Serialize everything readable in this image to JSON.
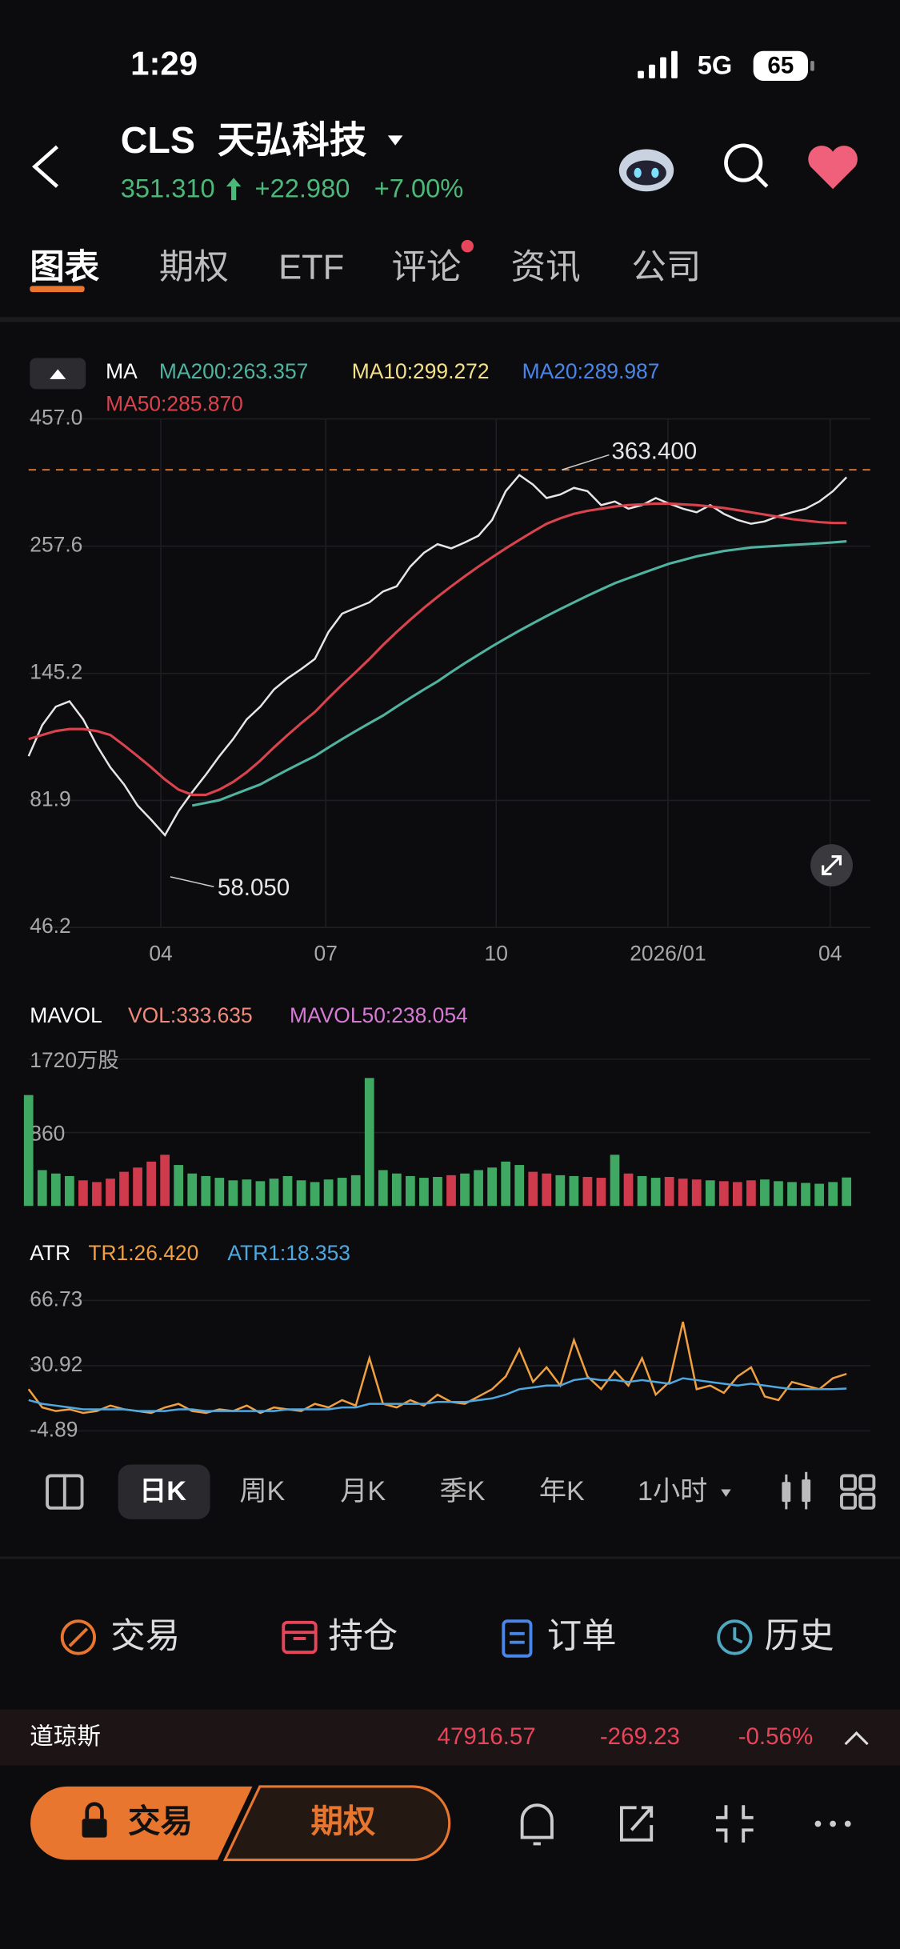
{
  "status_bar": {
    "time": "1:29",
    "network": "5G",
    "battery": "65"
  },
  "header": {
    "ticker": "CLS",
    "name": "天弘科技",
    "price": "351.310",
    "change": "+22.980",
    "change_pct": "+7.00%"
  },
  "tabs": [
    "图表",
    "期权",
    "ETF",
    "评论",
    "资讯",
    "公司"
  ],
  "price_chart": {
    "type": "line",
    "log_scale": true,
    "grid": true,
    "legend": {
      "title": "MA",
      "items": [
        "MA200:263.357",
        "MA10:299.272",
        "MA20:289.987",
        "MA50:285.870"
      ]
    },
    "x": [
      0,
      1,
      2,
      3,
      4,
      5,
      6,
      7,
      8,
      9,
      10,
      11,
      12,
      13,
      14,
      15,
      16,
      17,
      18,
      19,
      20,
      21,
      22,
      23,
      24,
      25,
      26,
      27,
      28,
      29,
      30,
      31,
      32,
      33,
      34,
      35,
      36,
      37,
      38,
      39,
      40,
      41,
      42,
      43,
      44,
      45,
      46,
      47,
      48,
      49,
      50,
      51,
      52,
      53,
      54,
      55,
      56,
      57,
      58,
      59,
      60
    ],
    "xlim": [
      0,
      60
    ],
    "xticks": [
      {
        "value": 9.7,
        "label": "04"
      },
      {
        "value": 21.8,
        "label": "07"
      },
      {
        "value": 34.3,
        "label": "10"
      },
      {
        "value": 46.9,
        "label": "2026/01"
      },
      {
        "value": 58.8,
        "label": "04"
      }
    ],
    "ylim": [
      46.2,
      457.0
    ],
    "yticks": [
      {
        "value": 457.0,
        "label": "457.0"
      },
      257.6,
      145.2,
      81.9,
      46.2
    ],
    "series": [
      {
        "name": "Close",
        "color": "#e6e6e6",
        "values": [
          100,
          115,
          125,
          128,
          118,
          105,
          95,
          88,
          80,
          75,
          70,
          78,
          85,
          92,
          100,
          108,
          118,
          125,
          135,
          142,
          148,
          155,
          175,
          190,
          195,
          200,
          210,
          215,
          235,
          250,
          260,
          255,
          262,
          270,
          290,
          330,
          355,
          340,
          320,
          325,
          335,
          330,
          310,
          315,
          305,
          310,
          320,
          312,
          305,
          300,
          310,
          298,
          290,
          285,
          288,
          295,
          300,
          305,
          315,
          330,
          351.31
        ]
      },
      {
        "name": "MA50",
        "color": "#d9434e",
        "values": [
          108,
          110,
          112,
          113,
          113,
          112,
          110,
          105,
          100,
          95,
          90,
          86,
          84,
          84,
          86,
          89,
          93,
          98,
          104,
          110,
          116,
          122,
          130,
          138,
          146,
          155,
          165,
          175,
          185,
          195,
          205,
          215,
          225,
          235,
          245,
          255,
          265,
          275,
          285,
          292,
          298,
          302,
          305,
          308,
          310,
          311,
          312,
          312,
          311,
          310,
          308,
          306,
          303,
          300,
          297,
          294,
          291,
          289,
          287,
          286,
          285.87
        ]
      },
      {
        "name": "MA200",
        "color": "#4fb3a0",
        "values": [
          null,
          null,
          null,
          null,
          null,
          null,
          null,
          null,
          null,
          null,
          null,
          null,
          80,
          81,
          82,
          84,
          86,
          88,
          91,
          94,
          97,
          100,
          104,
          108,
          112,
          116,
          120,
          125,
          130,
          135,
          140,
          146,
          152,
          158,
          164,
          170,
          176,
          182,
          188,
          194,
          200,
          206,
          212,
          218,
          223,
          228,
          233,
          238,
          242,
          246,
          249,
          252,
          254,
          256,
          257,
          258,
          259,
          260,
          261,
          262,
          263.357
        ]
      }
    ],
    "annotations": [
      {
        "value": 363.4,
        "label": "363.400"
      },
      {
        "value": 58.05,
        "label": "58.050"
      }
    ]
  },
  "volume_chart": {
    "type": "bar",
    "legend": {
      "title": "MAVOL",
      "items": [
        "VOL:333.635",
        "MAVOL50:238.054"
      ]
    },
    "ylim": [
      0,
      1720
    ],
    "yticks": [
      860,
      {
        "value": 1720,
        "label": "1720万股"
      }
    ],
    "values": [
      1300,
      420,
      380,
      350,
      300,
      280,
      320,
      400,
      450,
      520,
      600,
      480,
      380,
      350,
      330,
      300,
      310,
      290,
      320,
      350,
      300,
      280,
      310,
      330,
      360,
      1500,
      420,
      380,
      350,
      330,
      340,
      360,
      380,
      420,
      450,
      520,
      480,
      400,
      380,
      360,
      350,
      340,
      330,
      600,
      380,
      350,
      330,
      340,
      320,
      310,
      300,
      290,
      280,
      300,
      310,
      290,
      280,
      270,
      260,
      280,
      333.635
    ]
  },
  "atr_chart": {
    "type": "line",
    "legend": {
      "title": "ATR",
      "items": [
        "TR1:26.420",
        "ATR1:18.353"
      ]
    },
    "ylim": [
      -4.89,
      66.73
    ],
    "yticks": [
      66.73,
      30.92,
      -4.89
    ],
    "series": [
      {
        "name": "TR1",
        "color": "#f0a040",
        "values": [
          18,
          8,
          6,
          7,
          5,
          6,
          9,
          7,
          6,
          5,
          8,
          10,
          6,
          5,
          7,
          6,
          9,
          5,
          8,
          7,
          6,
          10,
          8,
          12,
          9,
          35,
          10,
          8,
          12,
          9,
          15,
          11,
          10,
          14,
          18,
          25,
          40,
          22,
          30,
          20,
          45,
          25,
          18,
          28,
          20,
          35,
          15,
          22,
          55,
          18,
          20,
          16,
          25,
          30,
          14,
          12,
          22,
          20,
          18,
          24,
          26.42
        ]
      },
      {
        "name": "ATR1",
        "color": "#4fa8e0",
        "values": [
          12,
          10,
          9,
          8,
          7,
          7,
          7,
          7,
          6,
          6,
          6,
          7,
          7,
          6,
          6,
          6,
          6,
          6,
          6,
          7,
          7,
          7,
          7,
          8,
          8,
          10,
          10,
          10,
          10,
          10,
          11,
          11,
          11,
          12,
          13,
          15,
          18,
          19,
          20,
          20,
          23,
          24,
          23,
          23,
          22,
          23,
          22,
          21,
          24,
          23,
          22,
          21,
          20,
          21,
          20,
          19,
          18,
          18,
          18,
          18,
          18.353
        ]
      }
    ]
  },
  "periods": [
    "日K",
    "周K",
    "月K",
    "季K",
    "年K",
    "1小时"
  ],
  "actions": [
    "交易",
    "持仓",
    "订单",
    "历史"
  ],
  "index_ticker": {
    "name": "道琼斯",
    "price": "47916.57",
    "change": "-269.23",
    "change_pct": "-0.56%"
  },
  "bottom_bar": {
    "trade": "交易",
    "options": "期权"
  }
}
